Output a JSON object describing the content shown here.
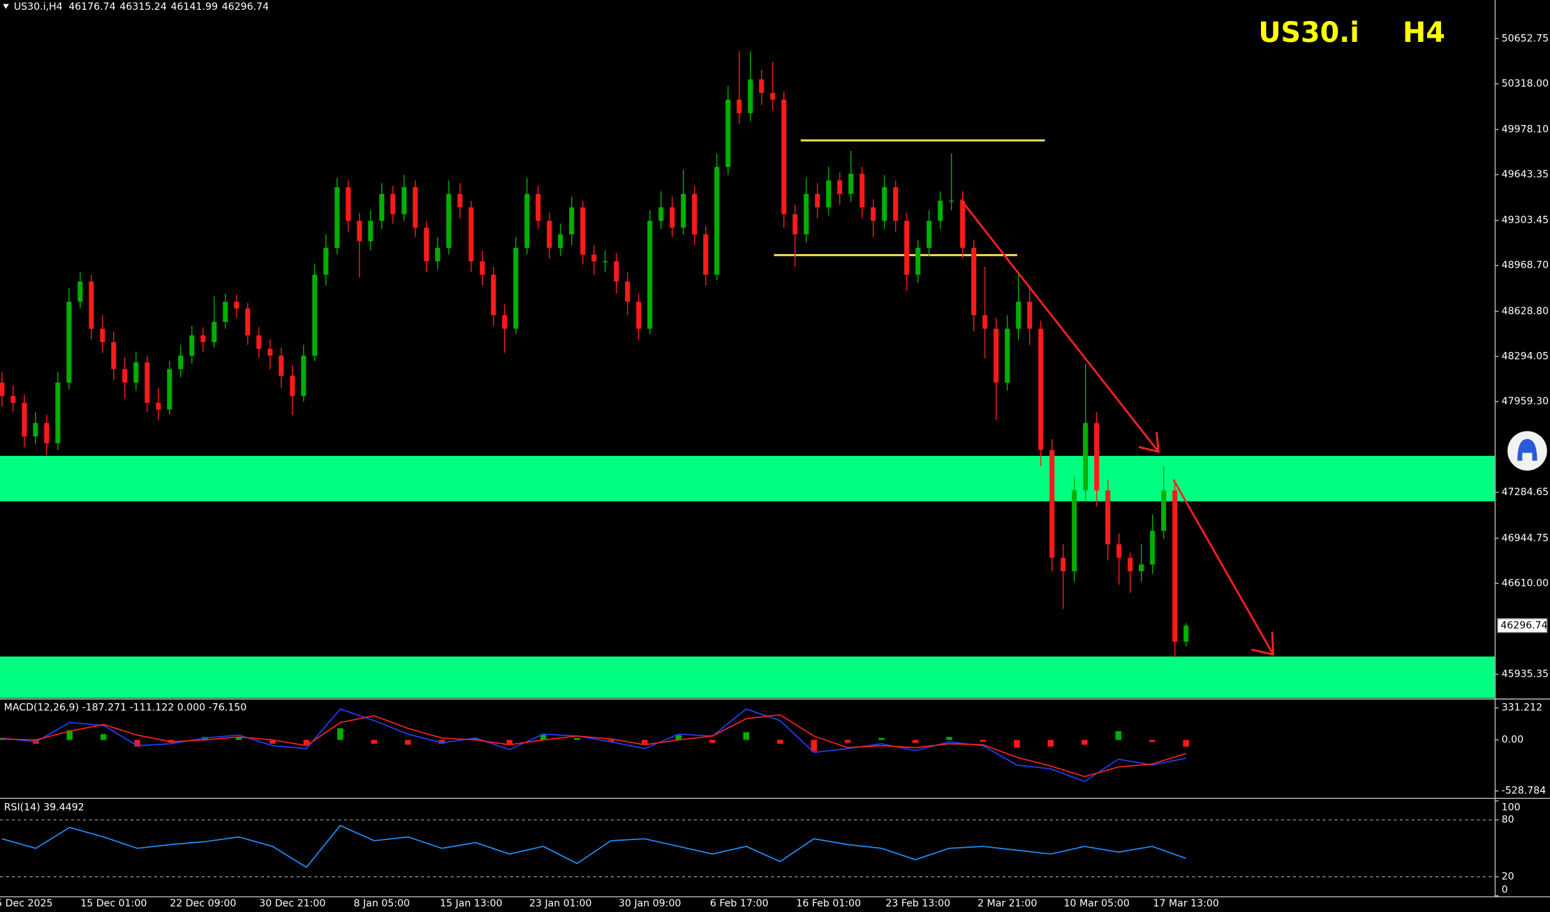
{
  "chart_data": [
    {
      "type": "candlestick",
      "header": "US30.i,H4",
      "symbol": "US30.i",
      "timeframe": "H4",
      "categories": [
        null,
        null,
        "5 Dec 2025",
        null,
        null,
        null,
        null,
        null,
        null,
        null,
        "15 Dec 01:00",
        null,
        null,
        null,
        null,
        null,
        null,
        null,
        "22 Dec 09:00",
        null,
        null,
        null,
        null,
        null,
        null,
        null,
        "30 Dec 21:00",
        null,
        null,
        null,
        null,
        null,
        null,
        null,
        "8 Jan 05:00",
        null,
        null,
        null,
        null,
        null,
        null,
        null,
        "15 Jan 13:00",
        null,
        null,
        null,
        null,
        null,
        null,
        null,
        "23 Jan 01:00",
        null,
        null,
        null,
        null,
        null,
        null,
        null,
        "30 Jan 09:00",
        null,
        null,
        null,
        null,
        null,
        null,
        null,
        "6 Feb 17:00",
        null,
        null,
        null,
        null,
        null,
        null,
        null,
        "16 Feb 01:00",
        null,
        null,
        null,
        null,
        null,
        null,
        null,
        "23 Feb 13:00",
        null,
        null,
        null,
        null,
        null,
        null,
        null,
        "2 Mar 21:00",
        null,
        null,
        null,
        null,
        null,
        null,
        null,
        "10 Mar 05:00",
        null,
        null,
        null,
        null,
        null,
        null,
        null,
        "17 Mar 13:00"
      ],
      "ohlc": [
        [
          48100,
          48180,
          47920,
          48000
        ],
        [
          48000,
          48080,
          47880,
          47950
        ],
        [
          47950,
          48010,
          47620,
          47700
        ],
        [
          47700,
          47880,
          47640,
          47800
        ],
        [
          47800,
          47860,
          47560,
          47650
        ],
        [
          47650,
          48180,
          47600,
          48100
        ],
        [
          48100,
          48800,
          48050,
          48700
        ],
        [
          48700,
          48920,
          48650,
          48850
        ],
        [
          48850,
          48900,
          48420,
          48500
        ],
        [
          48500,
          48600,
          48320,
          48400
        ],
        [
          48400,
          48480,
          48120,
          48200
        ],
        [
          48200,
          48290,
          47980,
          48100
        ],
        [
          48100,
          48330,
          48040,
          48250
        ],
        [
          48250,
          48300,
          47880,
          47950
        ],
        [
          47950,
          48060,
          47820,
          47900
        ],
        [
          47900,
          48260,
          47860,
          48200
        ],
        [
          48200,
          48380,
          48140,
          48300
        ],
        [
          48300,
          48520,
          48240,
          48450
        ],
        [
          48450,
          48510,
          48330,
          48400
        ],
        [
          48400,
          48740,
          48360,
          48550
        ],
        [
          48550,
          48760,
          48500,
          48700
        ],
        [
          48700,
          48750,
          48580,
          48650
        ],
        [
          48650,
          48690,
          48380,
          48450
        ],
        [
          48450,
          48510,
          48280,
          48350
        ],
        [
          48350,
          48420,
          48200,
          48300
        ],
        [
          48300,
          48360,
          48060,
          48150
        ],
        [
          48150,
          48230,
          47860,
          48000
        ],
        [
          48000,
          48380,
          47960,
          48300
        ],
        [
          48300,
          48980,
          48260,
          48900
        ],
        [
          48900,
          49200,
          48820,
          49100
        ],
        [
          49100,
          49620,
          49050,
          49550
        ],
        [
          49550,
          49600,
          49220,
          49300
        ],
        [
          49300,
          49360,
          48880,
          49150
        ],
        [
          49150,
          49380,
          49080,
          49300
        ],
        [
          49300,
          49580,
          49240,
          49500
        ],
        [
          49500,
          49560,
          49280,
          49350
        ],
        [
          49350,
          49640,
          49300,
          49550
        ],
        [
          49550,
          49600,
          49180,
          49250
        ],
        [
          49250,
          49300,
          48920,
          49000
        ],
        [
          49000,
          49180,
          48940,
          49100
        ],
        [
          49100,
          49600,
          49050,
          49500
        ],
        [
          49500,
          49580,
          49320,
          49400
        ],
        [
          49400,
          49450,
          48920,
          49000
        ],
        [
          49000,
          49080,
          48820,
          48900
        ],
        [
          48900,
          48960,
          48520,
          48600
        ],
        [
          48600,
          48680,
          48320,
          48500
        ],
        [
          48500,
          49180,
          48460,
          49100
        ],
        [
          49100,
          49620,
          49050,
          49500
        ],
        [
          49500,
          49560,
          49240,
          49300
        ],
        [
          49300,
          49360,
          49020,
          49100
        ],
        [
          49100,
          49280,
          49040,
          49200
        ],
        [
          49200,
          49480,
          49120,
          49400
        ],
        [
          49400,
          49450,
          48980,
          49050
        ],
        [
          49050,
          49120,
          48900,
          49000
        ],
        [
          49000,
          49080,
          48920,
          49000
        ],
        [
          49000,
          49060,
          48760,
          48850
        ],
        [
          48850,
          48920,
          48600,
          48700
        ],
        [
          48700,
          48760,
          48420,
          48500
        ],
        [
          48500,
          49380,
          48460,
          49300
        ],
        [
          49300,
          49520,
          49240,
          49400
        ],
        [
          49400,
          49480,
          49180,
          49250
        ],
        [
          49250,
          49680,
          49200,
          49500
        ],
        [
          49500,
          49560,
          49120,
          49200
        ],
        [
          49200,
          49260,
          48820,
          48900
        ],
        [
          48900,
          49800,
          48860,
          49700
        ],
        [
          49700,
          50300,
          49640,
          50200
        ],
        [
          50200,
          50560,
          50020,
          50100
        ],
        [
          50100,
          50560,
          50040,
          50350
        ],
        [
          50350,
          50420,
          50160,
          50250
        ],
        [
          50250,
          50480,
          50120,
          50200
        ],
        [
          50200,
          50260,
          49250,
          49350
        ],
        [
          49350,
          49420,
          48960,
          49200
        ],
        [
          49200,
          49620,
          49140,
          49500
        ],
        [
          49500,
          49580,
          49320,
          49400
        ],
        [
          49400,
          49700,
          49340,
          49600
        ],
        [
          49600,
          49660,
          49420,
          49500
        ],
        [
          49500,
          49820,
          49440,
          49650
        ],
        [
          49650,
          49700,
          49320,
          49400
        ],
        [
          49400,
          49460,
          49180,
          49300
        ],
        [
          49300,
          49640,
          49240,
          49550
        ],
        [
          49550,
          49600,
          49220,
          49300
        ],
        [
          49300,
          49360,
          48780,
          48900
        ],
        [
          48900,
          49160,
          48840,
          49100
        ],
        [
          49100,
          49380,
          49040,
          49300
        ],
        [
          49300,
          49520,
          49240,
          49450
        ],
        [
          49450,
          49800,
          49380,
          49450
        ],
        [
          49450,
          49520,
          49020,
          49100
        ],
        [
          49100,
          49160,
          48480,
          48600
        ],
        [
          48600,
          48960,
          48280,
          48500
        ],
        [
          48500,
          48580,
          47820,
          48100
        ],
        [
          48100,
          48600,
          48040,
          48500
        ],
        [
          48500,
          48900,
          48420,
          48700
        ],
        [
          48700,
          48820,
          48380,
          48500
        ],
        [
          48500,
          48560,
          47480,
          47600
        ],
        [
          47600,
          47680,
          46700,
          46800
        ],
        [
          46800,
          46900,
          46420,
          46700
        ],
        [
          46700,
          47400,
          46620,
          47300
        ],
        [
          47300,
          48240,
          47220,
          47800
        ],
        [
          47800,
          47880,
          47180,
          47300
        ],
        [
          47300,
          47380,
          46780,
          46900
        ],
        [
          46900,
          46980,
          46600,
          46800
        ],
        [
          46800,
          46840,
          46540,
          46700
        ],
        [
          46700,
          46900,
          46620,
          46750
        ],
        [
          46750,
          47120,
          46680,
          47000
        ],
        [
          47000,
          47480,
          46940,
          47300
        ],
        [
          47300,
          47360,
          46060,
          46176.74
        ],
        [
          46176.74,
          46315.24,
          46141.99,
          46296.74
        ]
      ],
      "up_color": "#00b000",
      "down_color": "#ff1a1a",
      "ylim": [
        45759,
        50939
      ],
      "yticks": [
        50652.75,
        {
          "value": 50318,
          "label": "50318.00"
        },
        {
          "value": 49978.1,
          "label": "49978.10"
        },
        49643.35,
        49303.45,
        {
          "value": 48968.7,
          "label": "48968.70"
        },
        {
          "value": 48628.8,
          "label": "48628.80"
        },
        48294.05,
        {
          "value": 47959.3,
          "label": "47959.30"
        },
        47284.65,
        46944.75,
        {
          "value": 46610,
          "label": "46610.00"
        },
        45935.35
      ],
      "zones": [
        [
          47219,
          47556
        ],
        [
          45759,
          46067
        ]
      ],
      "zone_color": "#00ff80",
      "levels": [
        49897,
        49046
      ],
      "level_color": "#ffe066"
    },
    {
      "type": "macd",
      "label": "MACD(12,26,9) -187.271 -111.122 0.000 -76.150",
      "histogram": [
        20,
        -40,
        100,
        60,
        -70,
        -30,
        30,
        30,
        -40,
        -50,
        120,
        -40,
        -50,
        -40,
        20,
        -40,
        60,
        20,
        -20,
        -40,
        50,
        -30,
        80,
        -40,
        -120,
        -30,
        20,
        -30,
        30,
        -20,
        -80,
        -70,
        -50,
        90,
        -20,
        -70
      ],
      "up_color": "#00b000",
      "down_color": "#ff1a1a",
      "series": [
        {
          "color": "#2040ff",
          "values": [
            20,
            -20,
            180,
            150,
            -60,
            -40,
            20,
            50,
            -60,
            -90,
            320,
            200,
            60,
            -30,
            20,
            -100,
            60,
            40,
            -20,
            -90,
            60,
            40,
            320,
            200,
            -130,
            -90,
            -40,
            -110,
            -20,
            -60,
            -260,
            -300,
            -430,
            -200,
            -260,
            -190
          ]
        },
        {
          "color": "#ff2020",
          "values": [
            10,
            0,
            90,
            160,
            50,
            -20,
            0,
            30,
            0,
            -60,
            180,
            250,
            120,
            20,
            0,
            -50,
            0,
            40,
            10,
            -50,
            0,
            40,
            220,
            260,
            40,
            -80,
            -60,
            -80,
            -40,
            -50,
            -180,
            -270,
            -380,
            -280,
            -250,
            -140
          ]
        }
      ],
      "ylim": [
        -590,
        413
      ],
      "yticks": [
        331.212,
        {
          "value": 0,
          "label": "0.00"
        },
        -528.784
      ]
    },
    {
      "type": "line",
      "label": "RSI(14) 39.4492",
      "grid": true,
      "series": [
        {
          "color": "#1e90ff",
          "values": [
            60,
            50,
            72,
            62,
            50,
            54,
            57,
            62,
            52,
            30,
            74,
            58,
            62,
            50,
            56,
            44,
            52,
            34,
            58,
            60,
            52,
            44,
            52,
            36,
            60,
            54,
            50,
            38,
            50,
            52,
            48,
            44,
            52,
            46,
            52,
            39.4492
          ]
        }
      ],
      "ylim": [
        0,
        100
      ],
      "yticks": [
        100,
        80,
        20,
        0
      ]
    }
  ]
}
